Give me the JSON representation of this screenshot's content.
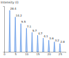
{
  "chart_data": {
    "type": "stem",
    "y_label": "Intensity (I)",
    "x": [
      2.5,
      5.0,
      7.5,
      10.0,
      12.5,
      15.0,
      17.5,
      20.0,
      22.5,
      25.0
    ],
    "values": [
      100,
      84,
      68,
      57,
      47,
      40,
      33,
      28,
      24,
      20
    ],
    "annotations": [
      "28.4",
      "14.2",
      "9.5",
      "7.1",
      "5.7",
      "4.7",
      "4.1",
      "3.6",
      "3.2",
      "2.8"
    ],
    "color": "#3d7fe0",
    "xlim": [
      0,
      27.5
    ],
    "xticks": [
      0,
      5,
      10,
      15,
      20,
      25
    ],
    "ylim": [
      0,
      110
    ],
    "tick_labels": "x"
  }
}
